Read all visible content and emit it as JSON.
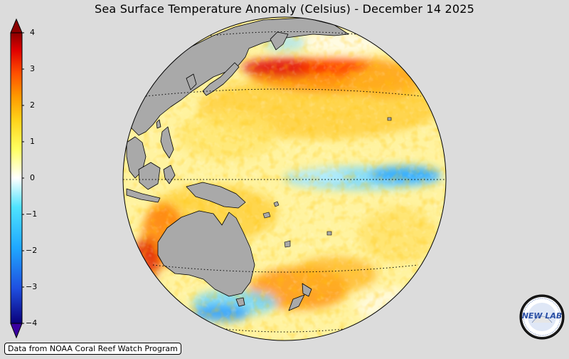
{
  "title": "Sea Surface Temperature Anomaly (Celsius) - December 14 2025",
  "colorbar": {
    "ticks": [
      "4",
      "3",
      "2",
      "1",
      "0",
      "−1",
      "−2",
      "−3",
      "−4"
    ],
    "stops": [
      "#0a007a",
      "#1f4fe0",
      "#1fa8ff",
      "#4fe3ff",
      "#ffffff",
      "#ffff60",
      "#ffd21a",
      "#ff9a00",
      "#ff5000",
      "#e00000",
      "#8b0000"
    ]
  },
  "map": {
    "land_color": "#a9a9a9",
    "ocean_base": "#fff6a8"
  },
  "credit": "Data from NOAA Coral Reef Watch Program",
  "logo": {
    "text": "NEW LAB"
  }
}
